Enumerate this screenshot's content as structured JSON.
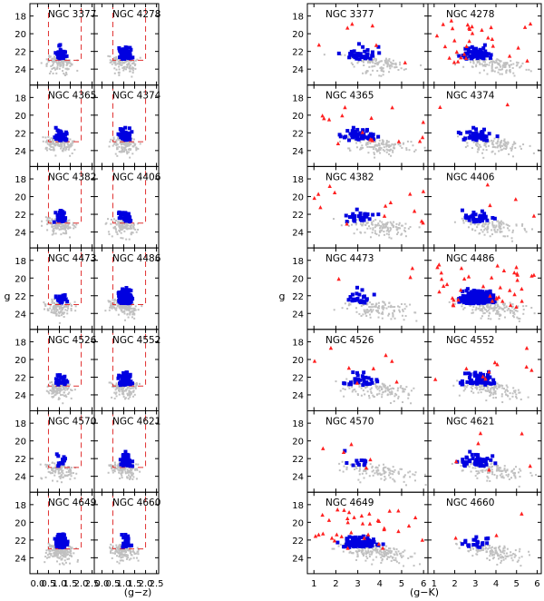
{
  "figure": {
    "description_free": true,
    "left_block": {
      "xlabel": "(g−z)",
      "ylabel": "g",
      "x_ticks": [
        "0.0",
        "0.5",
        "1.0",
        "1.5",
        "2.0",
        "2.5"
      ],
      "x_range": [
        -0.35,
        2.6
      ],
      "selection_box": {
        "x": [
          0.5,
          2.0
        ],
        "y_faint_limit": 23.0
      }
    },
    "right_block": {
      "xlabel": "(g−K)",
      "ylabel": "g",
      "x_ticks": [
        "1",
        "2",
        "3",
        "4",
        "5",
        "6"
      ],
      "x_range": [
        0.7,
        6.2
      ]
    },
    "y_ticks": [
      "18",
      "20",
      "22",
      "24"
    ],
    "y_range": [
      16.6,
      25.8
    ],
    "colors": {
      "background_points": "#c0c0c0",
      "selected_gc": "#0000e0",
      "red_triangles": "#ff2020",
      "selection_box": "#e03030"
    }
  },
  "chart_data": {
    "type": "scatter",
    "layout": "7 rows x 4 columns of color-magnitude panels",
    "y_axis": {
      "label": "g",
      "range": [
        16.6,
        25.8
      ],
      "inverted": true,
      "ticks": [
        18,
        20,
        22,
        24
      ]
    },
    "left_block_x_axis": {
      "label": "(g−z)",
      "range": [
        -0.35,
        2.6
      ],
      "ticks": [
        0.0,
        0.5,
        1.0,
        1.5,
        2.0,
        2.5
      ]
    },
    "right_block_x_axis": {
      "label": "(g−K)",
      "range": [
        0.7,
        6.2
      ],
      "ticks": [
        1,
        2,
        3,
        4,
        5,
        6
      ]
    },
    "galaxies": [
      {
        "name": "NGC 3377",
        "col": 0,
        "row": 0,
        "bg": 120,
        "sel": 45,
        "red": 6
      },
      {
        "name": "NGC 4278",
        "col": 1,
        "row": 0,
        "bg": 130,
        "sel": 70,
        "red": 30
      },
      {
        "name": "NGC 4365",
        "col": 0,
        "row": 1,
        "bg": 130,
        "sel": 55,
        "red": 16
      },
      {
        "name": "NGC 4374",
        "col": 1,
        "row": 1,
        "bg": 120,
        "sel": 45,
        "red": 2
      },
      {
        "name": "NGC 4382",
        "col": 0,
        "row": 2,
        "bg": 130,
        "sel": 30,
        "red": 14
      },
      {
        "name": "NGC 4406",
        "col": 1,
        "row": 2,
        "bg": 110,
        "sel": 35,
        "red": 4
      },
      {
        "name": "NGC 4473",
        "col": 0,
        "row": 3,
        "bg": 120,
        "sel": 25,
        "red": 3
      },
      {
        "name": "NGC 4486",
        "col": 1,
        "row": 3,
        "bg": 160,
        "sel": 260,
        "red": 40
      },
      {
        "name": "NGC 4526",
        "col": 0,
        "row": 4,
        "bg": 130,
        "sel": 30,
        "red": 8
      },
      {
        "name": "NGC 4552",
        "col": 1,
        "row": 4,
        "bg": 130,
        "sel": 70,
        "red": 10
      },
      {
        "name": "NGC 4570",
        "col": 0,
        "row": 5,
        "bg": 110,
        "sel": 12,
        "red": 5
      },
      {
        "name": "NGC 4621",
        "col": 1,
        "row": 5,
        "bg": 120,
        "sel": 50,
        "red": 6
      },
      {
        "name": "NGC 4649",
        "col": 0,
        "row": 6,
        "bg": 180,
        "sel": 110,
        "red": 35
      },
      {
        "name": "NGC 4660",
        "col": 1,
        "row": 6,
        "bg": 130,
        "sel": 22,
        "red": 3
      }
    ],
    "legend": "none",
    "grid": false
  }
}
